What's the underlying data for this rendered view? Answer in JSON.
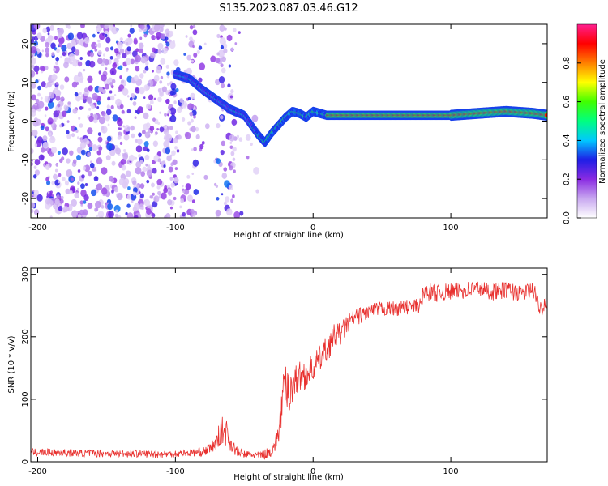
{
  "title": "S135.2023.087.03.46.G12",
  "chart_data": [
    {
      "type": "heatmap",
      "xlabel": "Height of straight line (km)",
      "ylabel": "Frequency (Hz)",
      "xlim": [
        -205,
        170
      ],
      "ylim": [
        -25,
        25
      ],
      "xticks": [
        "-200",
        "-100",
        "0",
        "100"
      ],
      "xtick_values": [
        -200,
        -100,
        0,
        100
      ],
      "yticks": [
        "-20",
        "-10",
        "0",
        "10",
        "20"
      ],
      "ytick_values": [
        -20,
        -10,
        0,
        10,
        20
      ],
      "colorbar": {
        "label": "Normalized spectral amplitude",
        "range": [
          0,
          1
        ],
        "ticks": [
          "0.0",
          "0.2",
          "0.4",
          "0.6",
          "0.8"
        ],
        "tick_values": [
          0.0,
          0.2,
          0.4,
          0.6,
          0.8
        ],
        "colormap": [
          "#ffffff",
          "#c8a8f0",
          "#8a2be2",
          "#1e1ee6",
          "#00c8ff",
          "#00ff80",
          "#40ff00",
          "#ffff00",
          "#ff8000",
          "#ff0000",
          "#ff1f8f"
        ]
      },
      "ridge": {
        "x": [
          -100,
          -90,
          -80,
          -70,
          -60,
          -50,
          -45,
          -40,
          -35,
          -30,
          -25,
          -20,
          -15,
          -10,
          -5,
          0,
          5,
          10,
          20,
          40,
          60,
          80,
          100,
          120,
          140,
          160,
          170
        ],
        "y": [
          12,
          11,
          8,
          5.5,
          3,
          1.5,
          -1,
          -3.5,
          -5.5,
          -3,
          -1,
          1,
          2.5,
          2,
          1,
          2.5,
          2,
          1.5,
          1.5,
          1.5,
          1.5,
          1.5,
          1.5,
          2,
          2.5,
          2,
          1.5
        ]
      }
    },
    {
      "type": "line",
      "xlabel": "Height of straight line (km)",
      "ylabel": "SNR (10 * v/v)",
      "xlim": [
        -205,
        170
      ],
      "ylim": [
        0,
        310
      ],
      "xticks": [
        "-200",
        "-100",
        "0",
        "100"
      ],
      "xtick_values": [
        -200,
        -100,
        0,
        100
      ],
      "yticks": [
        "0",
        "100",
        "200",
        "300"
      ],
      "ytick_values": [
        0,
        100,
        200,
        300
      ],
      "series": [
        {
          "color": "#e8312f",
          "x": [
            -205,
            -190,
            -170,
            -150,
            -130,
            -110,
            -100,
            -90,
            -80,
            -75,
            -70,
            -68,
            -65,
            -62,
            -60,
            -55,
            -50,
            -45,
            -40,
            -35,
            -30,
            -27,
            -25,
            -22,
            -20,
            -18,
            -15,
            -10,
            -5,
            0,
            5,
            10,
            15,
            20,
            25,
            30,
            40,
            50,
            60,
            70,
            78,
            80,
            85,
            90,
            100,
            110,
            120,
            130,
            140,
            150,
            160,
            163,
            165,
            170
          ],
          "y": [
            15,
            15,
            14,
            13,
            13,
            12,
            13,
            14,
            16,
            20,
            30,
            45,
            50,
            45,
            30,
            15,
            12,
            11,
            10,
            12,
            18,
            30,
            50,
            100,
            120,
            110,
            125,
            135,
            140,
            150,
            165,
            180,
            200,
            205,
            220,
            230,
            240,
            245,
            245,
            248,
            250,
            270,
            272,
            270,
            272,
            275,
            278,
            272,
            275,
            270,
            275,
            255,
            245,
            258
          ],
          "noise": [
            6,
            6,
            6,
            6,
            6,
            6,
            6,
            6,
            7,
            9,
            14,
            20,
            25,
            20,
            14,
            8,
            6,
            6,
            6,
            8,
            10,
            14,
            22,
            35,
            40,
            35,
            30,
            26,
            24,
            22,
            22,
            22,
            20,
            18,
            16,
            14,
            12,
            12,
            12,
            12,
            12,
            14,
            14,
            14,
            14,
            14,
            14,
            14,
            14,
            14,
            14,
            14,
            14,
            14
          ]
        }
      ]
    }
  ]
}
